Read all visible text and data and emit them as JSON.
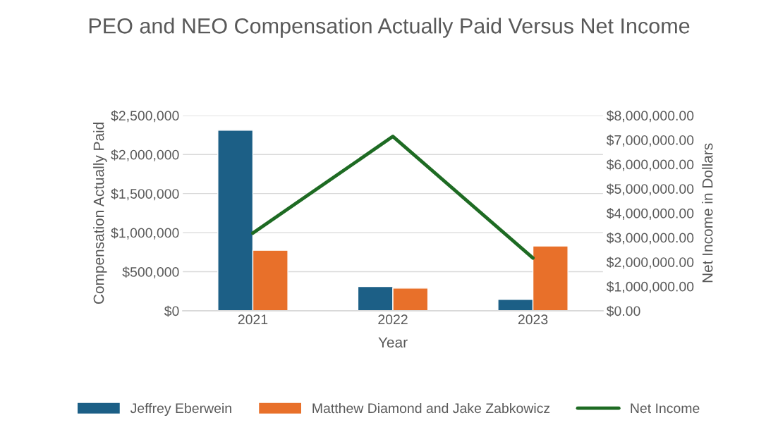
{
  "chart_data": {
    "type": "bar",
    "title": "PEO and NEO Compensation Actually Paid Versus Net Income",
    "xlabel": "Year",
    "ylabel": "Compensation Actually Paid",
    "y2label": "Net Income in Dollars",
    "categories": [
      "2021",
      "2022",
      "2023"
    ],
    "series": [
      {
        "name": "Jeffrey Eberwein",
        "color": "#1c5f86",
        "values": [
          2310000,
          310000,
          145000
        ]
      },
      {
        "name": "Matthew Diamond and Jake Zabkowicz",
        "color": "#e8702a",
        "values": [
          774000,
          290000,
          830000
        ]
      },
      {
        "name": "Net Income",
        "type": "line",
        "axis": "y2",
        "color": "#1e6b23",
        "values": [
          3180000,
          7140000,
          2160000
        ]
      }
    ],
    "ylim": [
      0,
      2500000
    ],
    "yticks": [
      {
        "value": 0,
        "label": "$0"
      },
      {
        "value": 500000,
        "label": "$500,000"
      },
      {
        "value": 1000000,
        "label": "$1,000,000"
      },
      {
        "value": 1500000,
        "label": "$1,500,000"
      },
      {
        "value": 2000000,
        "label": "$2,000,000"
      },
      {
        "value": 2500000,
        "label": "$2,500,000"
      }
    ],
    "y2lim": [
      0,
      8000000
    ],
    "y2ticks": [
      {
        "value": 0,
        "label": "$0.00"
      },
      {
        "value": 1000000,
        "label": "$1,000,000.00"
      },
      {
        "value": 2000000,
        "label": "$2,000,000.00"
      },
      {
        "value": 3000000,
        "label": "$3,000,000.00"
      },
      {
        "value": 4000000,
        "label": "$4,000,000.00"
      },
      {
        "value": 5000000,
        "label": "$5,000,000.00"
      },
      {
        "value": 6000000,
        "label": "$6,000,000.00"
      },
      {
        "value": 7000000,
        "label": "$7,000,000.00"
      },
      {
        "value": 8000000,
        "label": "$8,000,000.00"
      }
    ],
    "grid": "y",
    "legend": "bottom"
  }
}
